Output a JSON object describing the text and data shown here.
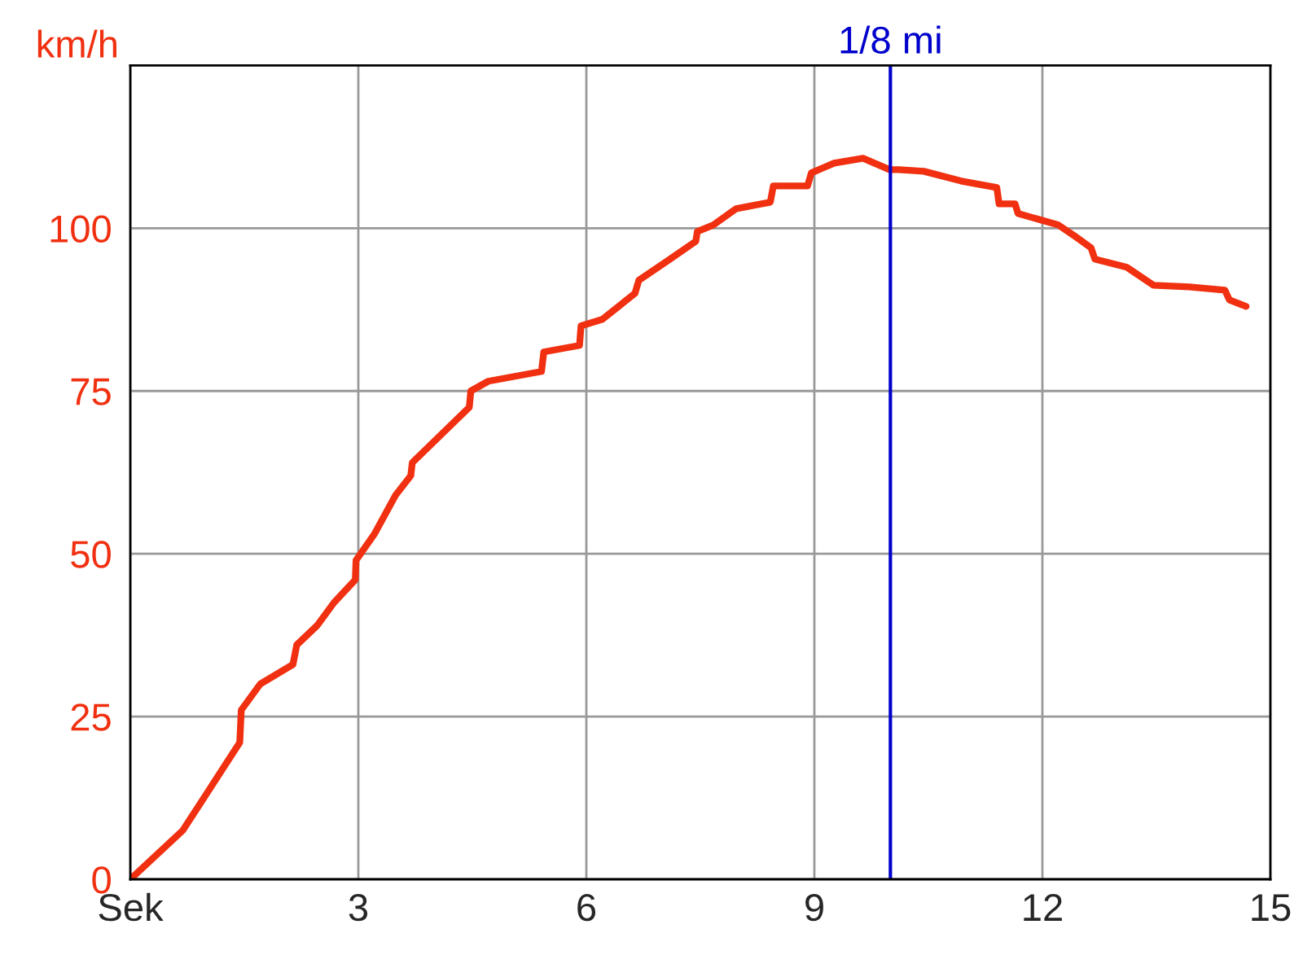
{
  "chart_data": {
    "type": "line",
    "ylabel": "km/h",
    "xlim": [
      0,
      15
    ],
    "xticks": [
      {
        "value": 0,
        "label": "Sek"
      },
      3,
      6,
      9,
      12,
      15
    ],
    "ylim": [
      0,
      125
    ],
    "yticks": [
      0,
      25,
      50,
      75,
      100
    ],
    "grid": true,
    "legend": false,
    "marker": "none",
    "line_style": "solid",
    "series": [
      {
        "color": "#f03010",
        "x": [
          0,
          0.69,
          1.44,
          1.46,
          1.71,
          2.14,
          2.19,
          2.46,
          2.68,
          2.96,
          2.97,
          3.21,
          3.49,
          3.69,
          3.71,
          4.46,
          4.48,
          4.71,
          5.41,
          5.44,
          5.91,
          5.93,
          6.21,
          6.64,
          6.69,
          7.07,
          7.44,
          7.46,
          7.67,
          7.97,
          8.42,
          8.46,
          8.91,
          8.96,
          9.26,
          9.64,
          9.99,
          10.11,
          10.44,
          10.93,
          11.4,
          11.43,
          11.64,
          11.68,
          12.21,
          12.43,
          12.64,
          12.69,
          13.11,
          13.46,
          13.93,
          14.4,
          14.46,
          14.68
        ],
        "values": [
          0,
          7.5,
          21,
          26,
          30,
          33,
          36,
          39,
          42.5,
          46,
          49,
          53,
          59,
          62,
          64,
          72.5,
          75,
          76.5,
          78,
          81,
          82,
          85,
          86,
          90,
          92,
          95,
          98,
          99.5,
          100.5,
          103,
          104,
          106.5,
          106.5,
          108.5,
          110,
          110.75,
          109,
          109,
          108.75,
          107.25,
          106.25,
          103.75,
          103.75,
          102.25,
          100.5,
          98.75,
          97,
          95.25,
          94,
          91.25,
          91,
          90.5,
          89,
          88
        ]
      }
    ],
    "ref_lines": [
      {
        "axis": "x",
        "value": 10,
        "label": "1/8 mi",
        "color": "#0000cc"
      }
    ]
  }
}
